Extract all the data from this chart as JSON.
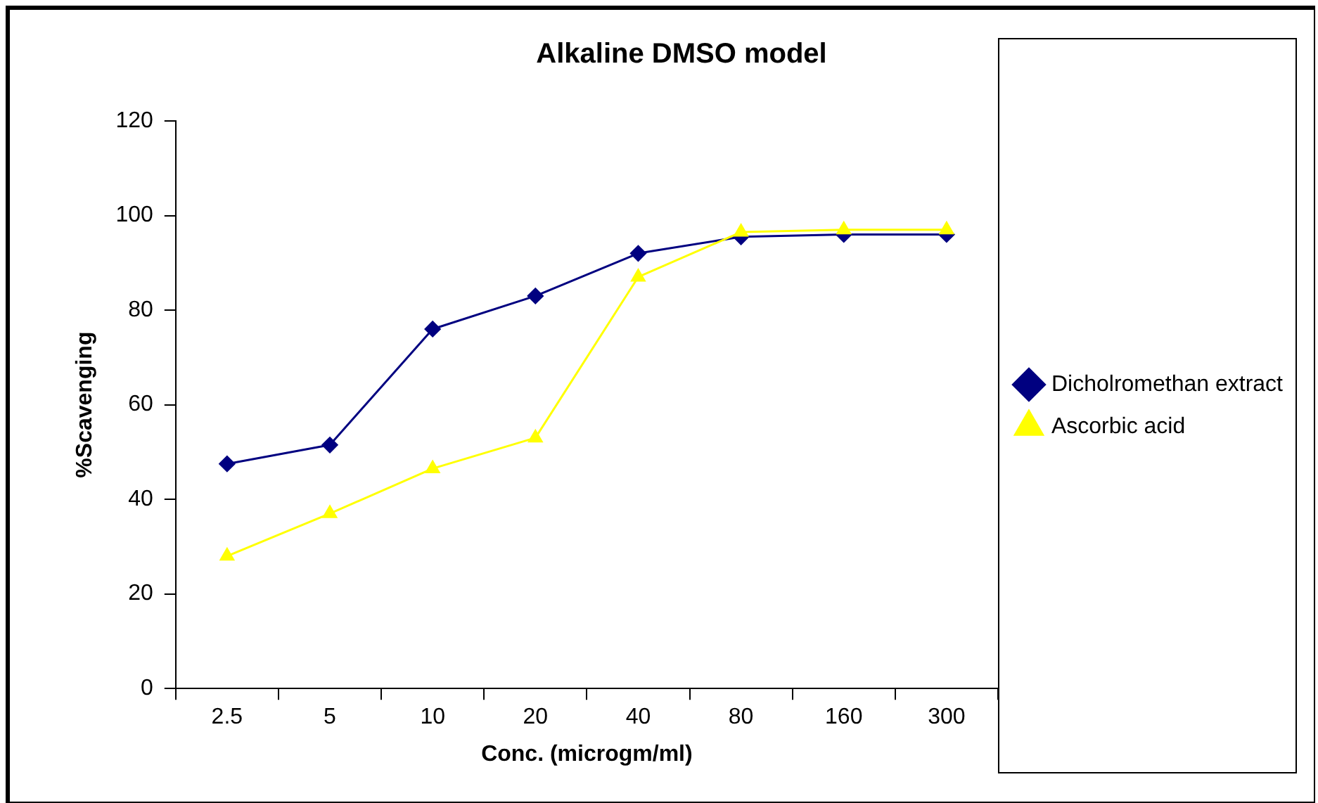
{
  "chart_data": {
    "type": "line",
    "title": "Alkaline DMSO model",
    "xlabel": "Conc. (microgm/ml)",
    "ylabel": "%Scavenging",
    "categories": [
      "2.5",
      "5",
      "10",
      "20",
      "40",
      "80",
      "160",
      "300"
    ],
    "ylim": [
      0,
      120
    ],
    "yticks": [
      0,
      20,
      40,
      60,
      80,
      100,
      120
    ],
    "grid": false,
    "legend": "right",
    "series": [
      {
        "name": "Dicholromethan extract",
        "color": "#000080",
        "marker": "diamond",
        "values": [
          47.5,
          51.5,
          76,
          83,
          92,
          95.5,
          96,
          96
        ]
      },
      {
        "name": "Ascorbic acid",
        "color": "#ffff00",
        "marker": "triangle",
        "values": [
          28,
          37,
          46.5,
          53,
          87,
          96.5,
          97,
          97
        ]
      }
    ]
  }
}
